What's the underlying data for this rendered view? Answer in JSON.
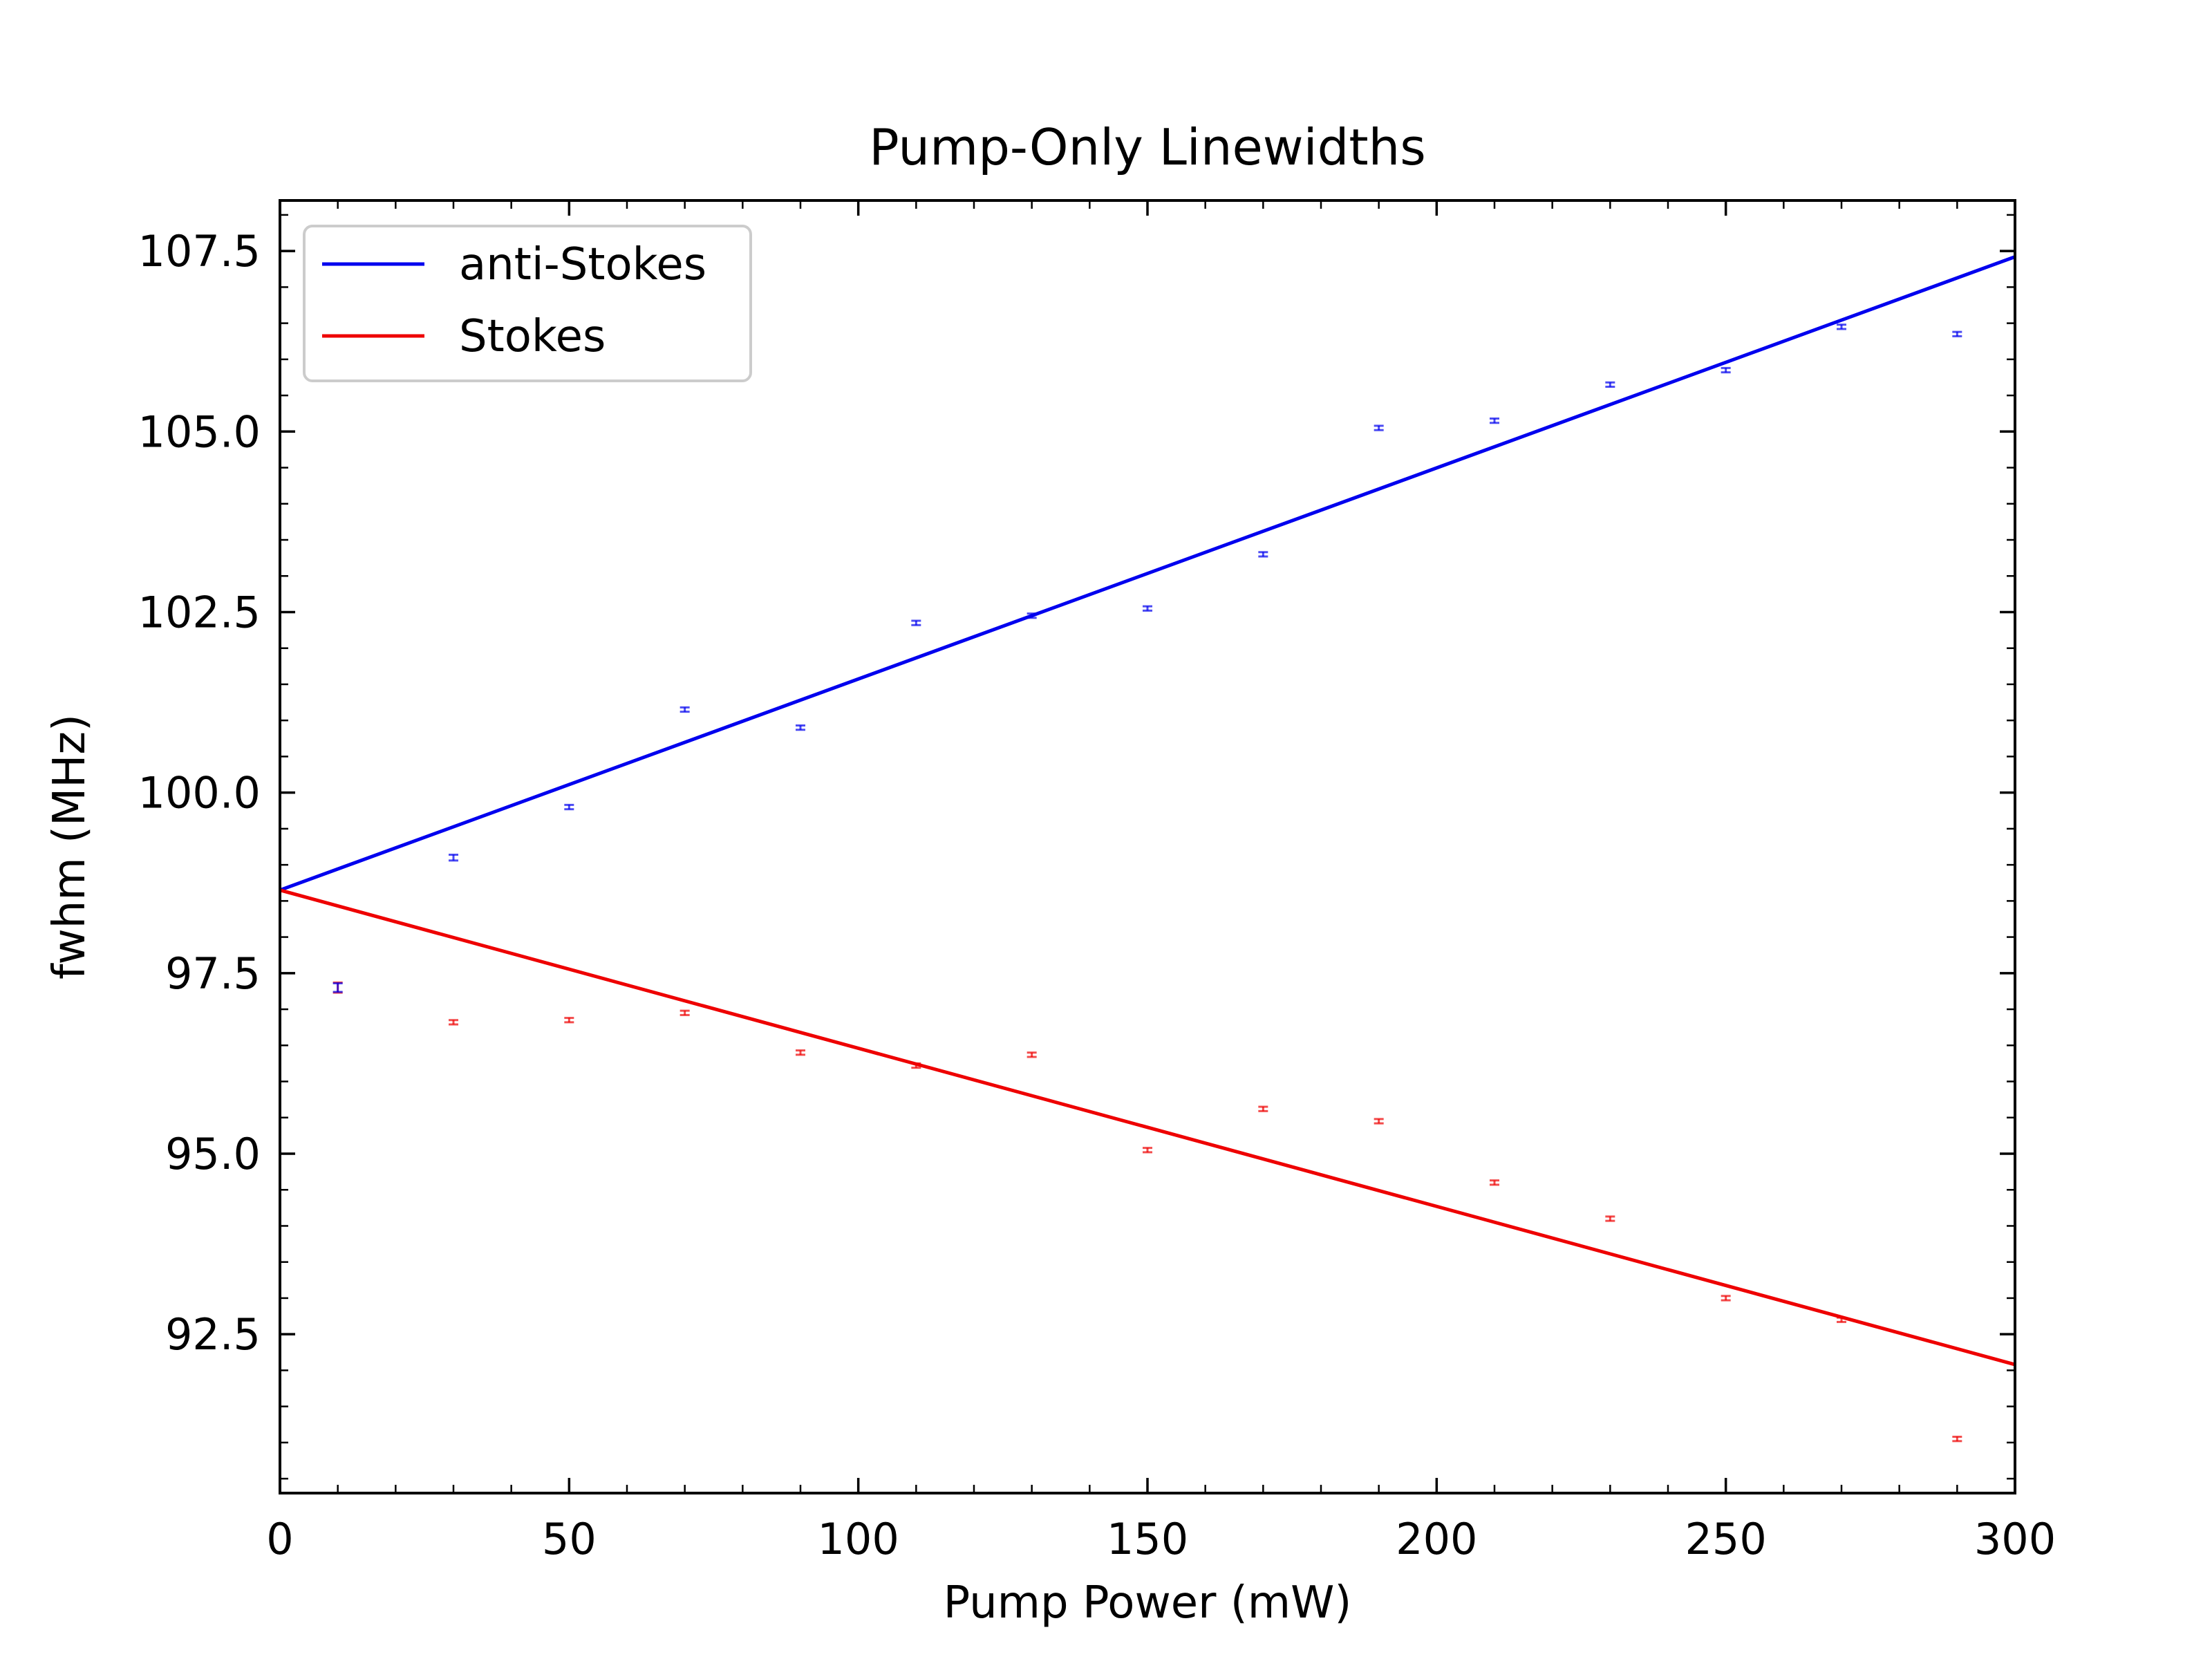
{
  "chart_data": {
    "type": "scatter",
    "title": "Pump-Only Linewidths",
    "xlabel": "Pump Power (mW)",
    "ylabel": "fwhm (MHz)",
    "xlim": [
      0,
      300
    ],
    "ylim": [
      90.3,
      108.2
    ],
    "xticks": [
      0,
      50,
      100,
      150,
      200,
      250,
      300
    ],
    "xtick_labels": [
      "0",
      "50",
      "100",
      "150",
      "200",
      "250",
      "300"
    ],
    "yticks": [
      92.5,
      95.0,
      97.5,
      100.0,
      102.5,
      105.0,
      107.5
    ],
    "ytick_labels": [
      "92.5",
      "95.0",
      "97.5",
      "100.0",
      "102.5",
      "105.0",
      "107.5"
    ],
    "grid": false,
    "legend_position": "top-left",
    "series": [
      {
        "name": "anti-Stokes",
        "color": "#0000ee",
        "fit": {
          "x": [
            0,
            300
          ],
          "y": [
            98.65,
            107.42
          ]
        },
        "points": {
          "x": [
            30,
            50,
            70,
            90,
            110,
            130,
            150,
            170,
            190,
            210,
            230,
            250,
            270,
            290
          ],
          "y": [
            99.1,
            99.8,
            101.15,
            100.9,
            102.35,
            102.45,
            102.55,
            103.3,
            105.05,
            105.15,
            105.65,
            105.85,
            106.45,
            106.35
          ],
          "err": [
            0.04,
            0.03,
            0.03,
            0.03,
            0.03,
            0.03,
            0.03,
            0.03,
            0.03,
            0.03,
            0.03,
            0.03,
            0.03,
            0.03
          ]
        }
      },
      {
        "name": "Stokes",
        "color": "#ee0000",
        "fit": {
          "x": [
            0,
            300
          ],
          "y": [
            98.65,
            92.08
          ]
        },
        "points": {
          "x": [
            10,
            30,
            50,
            70,
            90,
            110,
            130,
            150,
            170,
            190,
            210,
            230,
            250,
            270,
            290
          ],
          "y": [
            97.3,
            96.82,
            96.85,
            96.95,
            96.4,
            96.22,
            96.37,
            95.05,
            95.62,
            95.45,
            94.6,
            94.1,
            93.0,
            92.7,
            91.05
          ],
          "err": [
            0.07,
            0.03,
            0.03,
            0.03,
            0.03,
            0.03,
            0.03,
            0.03,
            0.03,
            0.03,
            0.03,
            0.03,
            0.03,
            0.03,
            0.03
          ]
        }
      }
    ],
    "extra_points": [
      {
        "x": 10,
        "y": 97.3,
        "err": 0.06,
        "color": "#0000ee"
      }
    ]
  }
}
